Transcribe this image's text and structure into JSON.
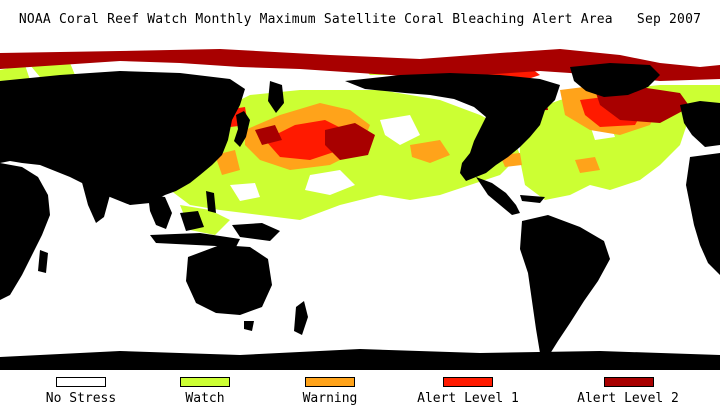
{
  "title": "NOAA Coral Reef Watch Monthly Maximum Satellite Coral Bleaching Alert Area",
  "date": "Sep 2007",
  "colors": {
    "land": "#000000",
    "no_stress": "#ffffff",
    "watch": "#ccff33",
    "warning": "#ffa31a",
    "alert1": "#ff1a00",
    "alert2": "#a80000"
  },
  "legend": [
    {
      "label": "No Stress",
      "color": "#ffffff"
    },
    {
      "label": "Watch",
      "color": "#ccff33"
    },
    {
      "label": "Warning",
      "color": "#ffa31a"
    },
    {
      "label": "Alert Level 1",
      "color": "#ff1a00"
    },
    {
      "label": "Alert Level 2",
      "color": "#a80000"
    }
  ]
}
